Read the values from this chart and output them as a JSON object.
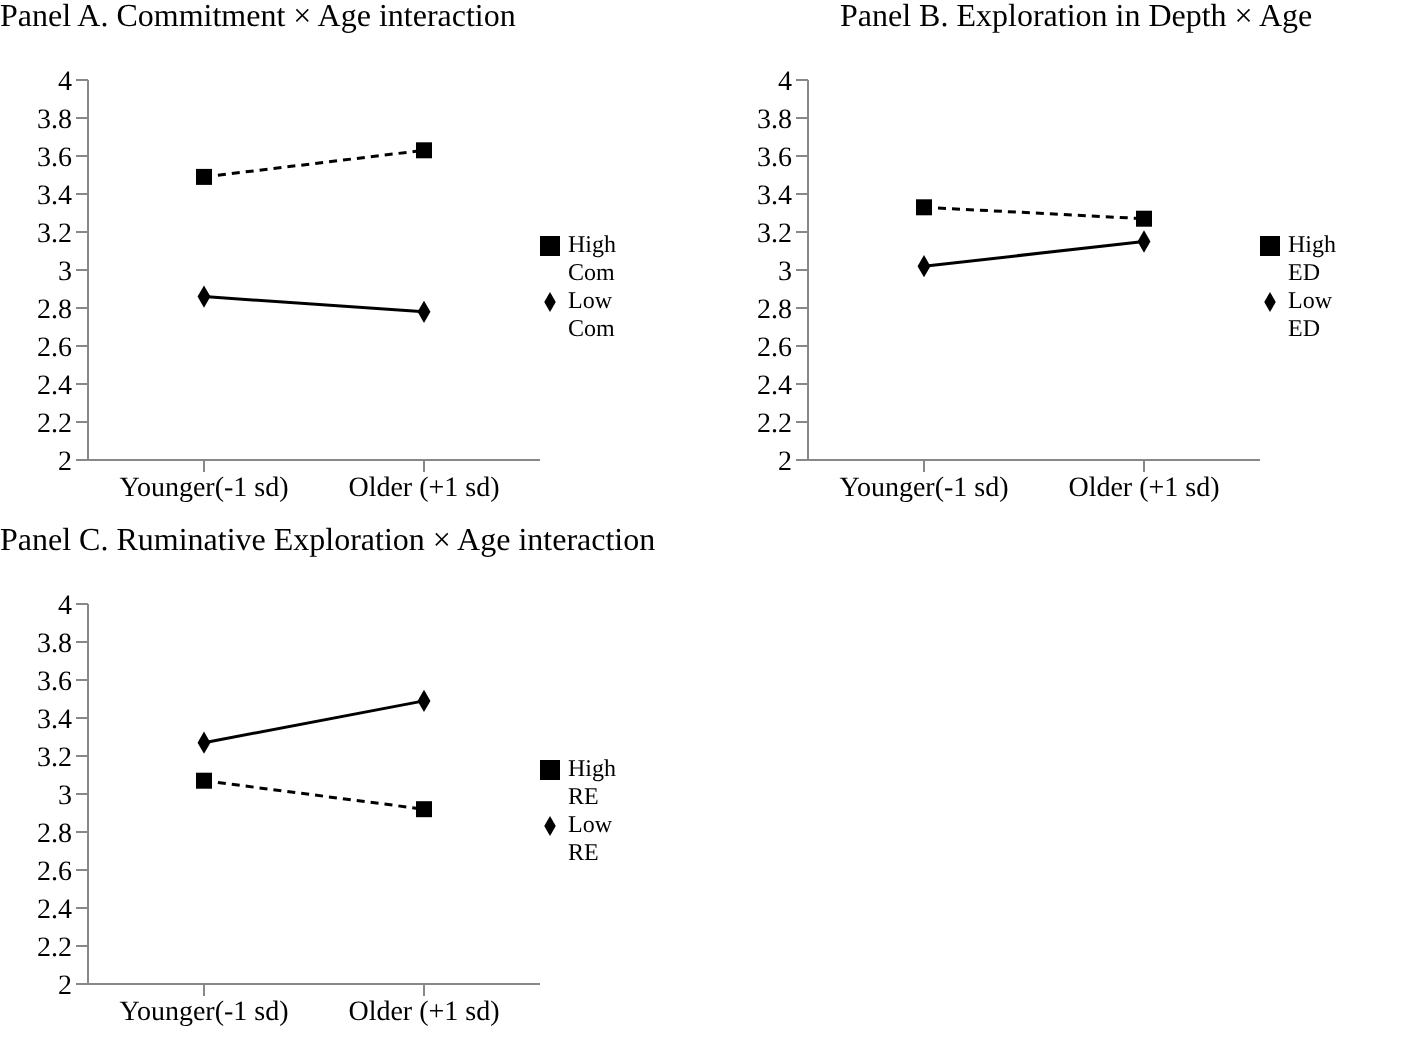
{
  "chart_data": [
    {
      "type": "line",
      "title": "Panel A. Commitment × Age interaction",
      "categories": [
        "Younger(-1 sd)",
        "Older (+1 sd)"
      ],
      "ylim": [
        2,
        4
      ],
      "yticks": [
        2,
        2.2,
        2.4,
        2.6,
        2.8,
        3,
        3.2,
        3.4,
        3.6,
        3.8,
        4
      ],
      "grid": false,
      "legend": "right",
      "series": [
        {
          "name": "Low Com",
          "color": "#000000",
          "values": [
            2.86,
            2.78
          ],
          "marker": "diamond",
          "line_style": "solid"
        },
        {
          "name": "High Com",
          "color": "#000000",
          "values": [
            3.49,
            3.63
          ],
          "marker": "square",
          "line_style": "dashed"
        }
      ]
    },
    {
      "type": "line",
      "title": "Panel B. Exploration in Depth × Age",
      "categories": [
        "Younger(-1 sd)",
        "Older (+1 sd)"
      ],
      "ylim": [
        2,
        4
      ],
      "yticks": [
        2,
        2.2,
        2.4,
        2.6,
        2.8,
        3,
        3.2,
        3.4,
        3.6,
        3.8,
        4
      ],
      "grid": false,
      "legend": "right",
      "series": [
        {
          "name": "Low ED",
          "color": "#000000",
          "values": [
            3.02,
            3.15
          ],
          "marker": "diamond",
          "line_style": "solid"
        },
        {
          "name": "High ED",
          "color": "#000000",
          "values": [
            3.33,
            3.27
          ],
          "marker": "square",
          "line_style": "dashed"
        }
      ]
    },
    {
      "type": "line",
      "title": "Panel C. Ruminative Exploration × Age interaction",
      "categories": [
        "Younger(-1 sd)",
        "Older (+1 sd)"
      ],
      "ylim": [
        2,
        4
      ],
      "yticks": [
        2,
        2.2,
        2.4,
        2.6,
        2.8,
        3,
        3.2,
        3.4,
        3.6,
        3.8,
        4
      ],
      "grid": false,
      "legend": "right",
      "series": [
        {
          "name": "Low RE",
          "color": "#000000",
          "values": [
            3.27,
            3.49
          ],
          "marker": "diamond",
          "line_style": "solid"
        },
        {
          "name": "High RE",
          "color": "#000000",
          "values": [
            3.07,
            2.92
          ],
          "marker": "square",
          "line_style": "dashed"
        }
      ]
    }
  ]
}
